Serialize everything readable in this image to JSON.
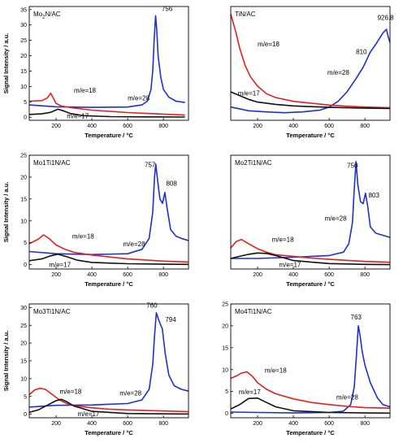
{
  "colors": {
    "m18": "#e0201f",
    "m17": "#111111",
    "m28": "#1f2fd0",
    "axis": "#000000"
  },
  "xlabel": "Temperature / °C",
  "ylabel": "Signal Intensity / a.u.",
  "chart_data": [
    {
      "type": "line",
      "title": "Mo2N/AC",
      "title_base": "Mo",
      "title_sub": "2",
      "title_rest": "N/AC",
      "xlabel": "Temperature / °C",
      "ylabel": "Signal Intensity / a.u.",
      "xlim": [
        50,
        940
      ],
      "ylim": [
        -1,
        36
      ],
      "xticks": [
        200,
        400,
        600,
        800
      ],
      "yticks": [
        0,
        5,
        10,
        15,
        20,
        25,
        30,
        35
      ],
      "series": [
        {
          "name": "m/e=28",
          "key": "m28",
          "x": [
            50,
            200,
            400,
            600,
            680,
            710,
            730,
            740,
            748,
            756,
            762,
            770,
            785,
            800,
            830,
            870,
            920
          ],
          "y": [
            4,
            3.4,
            3.2,
            3.3,
            4,
            5.2,
            9,
            15,
            25,
            33,
            29,
            20,
            13,
            9,
            6.5,
            5.2,
            4.8
          ]
        },
        {
          "name": "m/e=18",
          "key": "m18",
          "x": [
            50,
            120,
            150,
            170,
            185,
            200,
            230,
            300,
            400,
            600,
            800,
            920
          ],
          "y": [
            5.2,
            5.4,
            6.2,
            7.8,
            6.2,
            4.5,
            3.6,
            3,
            2.3,
            1.5,
            1,
            0.7
          ]
        },
        {
          "name": "m/e=17",
          "key": "m17",
          "x": [
            50,
            120,
            170,
            210,
            240,
            280,
            350,
            500,
            700,
            920
          ],
          "y": [
            0.9,
            1.1,
            1.6,
            2.6,
            2.1,
            1.2,
            0.5,
            0.2,
            0.1,
            0.05
          ]
        }
      ],
      "annotations": [
        {
          "text": "756",
          "x": 790,
          "y": 34.5
        },
        {
          "text": "m/e=18",
          "x": 300,
          "y": 8
        },
        {
          "text": "m/e=28",
          "x": 600,
          "y": 5.5
        },
        {
          "text": "m/e=17",
          "x": 260,
          "y": -0.3
        }
      ]
    },
    {
      "type": "line",
      "title": "TiN/AC",
      "xlabel": "Temperature / °C",
      "ylabel": "",
      "xlim": [
        50,
        940
      ],
      "ylim": [
        -0.2,
        2.8
      ],
      "xticks": [
        200,
        400,
        600,
        800
      ],
      "yticks": [],
      "series": [
        {
          "name": "m/e=28",
          "key": "m28",
          "x": [
            50,
            150,
            250,
            350,
            450,
            550,
            600,
            650,
            700,
            750,
            790,
            810,
            830,
            860,
            900,
            920,
            930,
            940
          ],
          "y": [
            0.15,
            0.05,
            0.02,
            0,
            0.02,
            0.07,
            0.15,
            0.3,
            0.55,
            0.9,
            1.2,
            1.4,
            1.6,
            1.8,
            2.1,
            2.2,
            2.0,
            1.85
          ]
        },
        {
          "name": "m/e=18",
          "key": "m18",
          "x": [
            50,
            80,
            100,
            130,
            160,
            200,
            250,
            300,
            400,
            500,
            600,
            700,
            800,
            940
          ],
          "y": [
            2.6,
            2.1,
            1.7,
            1.25,
            0.95,
            0.7,
            0.5,
            0.4,
            0.3,
            0.25,
            0.2,
            0.17,
            0.15,
            0.13
          ]
        },
        {
          "name": "m/e=17",
          "key": "m17",
          "x": [
            50,
            100,
            150,
            200,
            300,
            400,
            500,
            600,
            800,
            940
          ],
          "y": [
            0.55,
            0.45,
            0.35,
            0.28,
            0.22,
            0.18,
            0.16,
            0.14,
            0.12,
            0.11
          ]
        }
      ],
      "annotations": [
        {
          "text": "926.8",
          "x": 870,
          "y": 2.45
        },
        {
          "text": "810",
          "x": 750,
          "y": 1.55
        },
        {
          "text": "m/e=18",
          "x": 200,
          "y": 1.75
        },
        {
          "text": "m/e=28",
          "x": 590,
          "y": 1.0
        },
        {
          "text": "m/e=17",
          "x": 90,
          "y": 0.45
        }
      ]
    },
    {
      "type": "line",
      "title": "Mo1Ti1N/AC",
      "xlabel": "Temperature / °C",
      "ylabel": "Signal Intensity / a.u.",
      "xlim": [
        50,
        940
      ],
      "ylim": [
        -1,
        25
      ],
      "xticks": [
        200,
        400,
        600,
        800
      ],
      "yticks": [
        0,
        5,
        10,
        15,
        20,
        25
      ],
      "series": [
        {
          "name": "m/e=28",
          "key": "m28",
          "x": [
            50,
            200,
            400,
            600,
            680,
            720,
            740,
            750,
            757,
            765,
            780,
            795,
            808,
            820,
            840,
            870,
            900,
            940
          ],
          "y": [
            3,
            2.5,
            2.3,
            2.5,
            3.5,
            6,
            12,
            20,
            23,
            20,
            15,
            14,
            16.5,
            13,
            8,
            6.5,
            6,
            5.5
          ]
        },
        {
          "name": "m/e=18",
          "key": "m18",
          "x": [
            50,
            100,
            130,
            160,
            200,
            250,
            300,
            400,
            600,
            800,
            940
          ],
          "y": [
            4.8,
            5.8,
            6.8,
            6,
            4.5,
            3.5,
            2.8,
            2.2,
            1.3,
            0.8,
            0.6
          ]
        },
        {
          "name": "m/e=17",
          "key": "m17",
          "x": [
            50,
            120,
            170,
            210,
            260,
            320,
            400,
            600,
            800,
            940
          ],
          "y": [
            0.9,
            1.3,
            2,
            2.4,
            1.8,
            1,
            0.5,
            0.2,
            0.1,
            0.05
          ]
        }
      ],
      "annotations": [
        {
          "text": "757",
          "x": 695,
          "y": 22.3
        },
        {
          "text": "808",
          "x": 815,
          "y": 18
        },
        {
          "text": "m/e=18",
          "x": 290,
          "y": 6
        },
        {
          "text": "m/e=28",
          "x": 575,
          "y": 4.2
        },
        {
          "text": "m/e=17",
          "x": 160,
          "y": -0.5
        }
      ]
    },
    {
      "type": "line",
      "title": "Mo2Ti1N/AC",
      "xlabel": "Temperature / °C",
      "ylabel": "",
      "xlim": [
        50,
        940
      ],
      "ylim": [
        -1,
        26
      ],
      "xticks": [
        200,
        400,
        600,
        800
      ],
      "yticks": [],
      "series": [
        {
          "name": "m/e=28",
          "key": "m28",
          "x": [
            50,
            200,
            400,
            600,
            680,
            710,
            730,
            740,
            750,
            760,
            775,
            790,
            803,
            815,
            830,
            860,
            900,
            940
          ],
          "y": [
            1.5,
            1.5,
            1.8,
            2.2,
            3,
            5,
            10,
            18,
            24.5,
            19,
            15,
            14.5,
            17,
            14,
            9,
            7.5,
            7,
            6.5
          ]
        },
        {
          "name": "m/e=18",
          "key": "m18",
          "x": [
            50,
            80,
            110,
            150,
            200,
            250,
            300,
            400,
            500,
            600,
            800,
            940
          ],
          "y": [
            4,
            5.5,
            6,
            5,
            3.8,
            3,
            2.4,
            2,
            1.6,
            1.3,
            0.8,
            0.6
          ]
        },
        {
          "name": "m/e=17",
          "key": "m17",
          "x": [
            50,
            100,
            150,
            200,
            250,
            300,
            350,
            400,
            600,
            800,
            940
          ],
          "y": [
            1.5,
            2,
            2.5,
            2.8,
            2.7,
            2.2,
            1.6,
            1,
            0.3,
            0.1,
            0.05
          ]
        }
      ],
      "annotations": [
        {
          "text": "750",
          "x": 700,
          "y": 23
        },
        {
          "text": "803",
          "x": 820,
          "y": 16
        },
        {
          "text": "m/e=18",
          "x": 280,
          "y": 5.5
        },
        {
          "text": "m/e=28",
          "x": 575,
          "y": 10.5
        },
        {
          "text": "m/e=17",
          "x": 320,
          "y": -0.5
        }
      ]
    },
    {
      "type": "line",
      "title": "Mo3Ti1N/AC",
      "xlabel": "Temperature / °C",
      "ylabel": "Signal Intensity / a.u.",
      "xlim": [
        50,
        940
      ],
      "ylim": [
        -1,
        31
      ],
      "xticks": [
        200,
        400,
        600,
        800
      ],
      "yticks": [
        0,
        5,
        10,
        15,
        20,
        25,
        30
      ],
      "series": [
        {
          "name": "m/e=28",
          "key": "m28",
          "x": [
            50,
            200,
            400,
            600,
            680,
            720,
            740,
            750,
            760,
            770,
            785,
            794,
            810,
            830,
            860,
            900,
            940
          ],
          "y": [
            2,
            2.5,
            2.6,
            3,
            4,
            7,
            14,
            22,
            28.5,
            27,
            25,
            24,
            17,
            11,
            8,
            7,
            6.5
          ]
        },
        {
          "name": "m/e=18",
          "key": "m18",
          "x": [
            50,
            80,
            110,
            140,
            180,
            220,
            260,
            300,
            400,
            500,
            600,
            800,
            940
          ],
          "y": [
            5.5,
            6.8,
            7.3,
            7,
            5.5,
            4,
            3,
            2.4,
            1.8,
            1.4,
            1.2,
            0.9,
            0.7
          ]
        },
        {
          "name": "m/e=17",
          "key": "m17",
          "x": [
            50,
            100,
            150,
            200,
            230,
            260,
            300,
            400,
            600,
            800,
            940
          ],
          "y": [
            0.5,
            1.2,
            2.5,
            3.8,
            4.2,
            3.5,
            2.3,
            0.8,
            0.2,
            0.1,
            0.05
          ]
        }
      ],
      "annotations": [
        {
          "text": "760",
          "x": 705,
          "y": 30
        },
        {
          "text": "794",
          "x": 810,
          "y": 26
        },
        {
          "text": "m/e=18",
          "x": 220,
          "y": 5.8
        },
        {
          "text": "m/e=28",
          "x": 555,
          "y": 5.3
        },
        {
          "text": "m/e=17",
          "x": 320,
          "y": -0.5
        }
      ]
    },
    {
      "type": "line",
      "title": "Mo4Ti1N/AC",
      "xlabel": "Temperature / °C",
      "ylabel": "",
      "xlim": [
        50,
        940
      ],
      "ylim": [
        -1,
        25
      ],
      "xticks": [
        200,
        400,
        600,
        800
      ],
      "yticks": [
        0,
        5,
        10,
        15,
        20,
        25
      ],
      "series": [
        {
          "name": "m/e=28",
          "key": "m28",
          "x": [
            50,
            200,
            400,
            600,
            680,
            720,
            740,
            752,
            763,
            772,
            785,
            800,
            830,
            870,
            900,
            940
          ],
          "y": [
            0.3,
            0.2,
            0.1,
            0.2,
            0.5,
            2,
            6,
            13,
            20,
            18,
            14,
            11,
            7,
            3.5,
            2,
            1.5
          ]
        },
        {
          "name": "m/e=18",
          "key": "m18",
          "x": [
            50,
            80,
            110,
            140,
            170,
            200,
            250,
            300,
            400,
            500,
            600,
            700,
            800,
            940
          ],
          "y": [
            8,
            8.5,
            9.2,
            9.5,
            8.5,
            7,
            5.5,
            4.5,
            3.3,
            2.5,
            2,
            1.6,
            1.3,
            1.2
          ]
        },
        {
          "name": "m/e=17",
          "key": "m17",
          "x": [
            50,
            100,
            150,
            200,
            250,
            300,
            400,
            600,
            800,
            940
          ],
          "y": [
            1,
            2,
            3.4,
            3.5,
            2.5,
            1.5,
            0.6,
            0.2,
            0.1,
            0.05
          ]
        }
      ],
      "annotations": [
        {
          "text": "763",
          "x": 720,
          "y": 21.5
        },
        {
          "text": "m/e=18",
          "x": 240,
          "y": 9.3
        },
        {
          "text": "m/e=17",
          "x": 95,
          "y": 4.4
        },
        {
          "text": "m/e=28",
          "x": 640,
          "y": 3.2
        }
      ]
    }
  ]
}
